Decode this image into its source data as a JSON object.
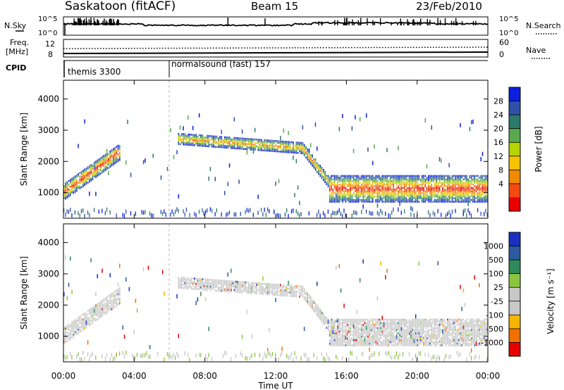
{
  "header": {
    "station": "Saskatoon (fitACF)",
    "beam": "Beam 15",
    "date": "23/Feb/2010"
  },
  "noise_panel": {
    "left_label": "N.Sky",
    "right_label": "N.Search",
    "left_ticks": [
      "10^5",
      "10^0"
    ],
    "right_ticks": [
      "10^5",
      "10^0"
    ]
  },
  "freq_panel": {
    "left_label_1": "Freq.",
    "left_label_2": "[MHz]",
    "left_ticks": [
      "12",
      "8"
    ],
    "right_ticks": [
      "60",
      "0"
    ],
    "right_label": "Nave"
  },
  "cpid_panel": {
    "label": "CPID",
    "segments": [
      {
        "label": "themis 3300",
        "start_hour": 0
      },
      {
        "label": "normalsound (fast) 157",
        "start_hour": 6
      }
    ]
  },
  "power_panel": {
    "ylabel": "Slant Range [km]",
    "yticks": [
      "4000",
      "3000",
      "2000",
      "1000"
    ],
    "colorbar_label": "Power [dB]",
    "colorbar_ticks": [
      "28",
      "24",
      "20",
      "16",
      "12",
      "8",
      "4"
    ],
    "colors": [
      "#0b1fe0",
      "#2f4fa8",
      "#2b7a6a",
      "#5aa84f",
      "#b6d400",
      "#f7c200",
      "#f08a00",
      "#f24a10",
      "#e80000"
    ]
  },
  "velocity_panel": {
    "ylabel": "Slant Range [km]",
    "yticks": [
      "4000",
      "3000",
      "2000",
      "1000"
    ],
    "colorbar_label": "Velocity [m s⁻¹]",
    "colorbar_ticks": [
      "1000",
      "500",
      "100",
      "25",
      "-25",
      "-100",
      "-500",
      "-1000"
    ],
    "colors": [
      "#1a2fbf",
      "#2d5aa0",
      "#2f8a5a",
      "#8cc63f",
      "#c8c8c8",
      "#c8c8c8",
      "#f7b500",
      "#f07000",
      "#e60000"
    ]
  },
  "x_axis": {
    "label": "Time UT",
    "ticks": [
      "00:00",
      "04:00",
      "08:00",
      "12:00",
      "16:00",
      "20:00",
      "00:00"
    ]
  },
  "chart_data": {
    "type": "heatmap",
    "title": "Saskatoon (fitACF) Beam 15 23/Feb/2010",
    "xlabel": "Time UT",
    "xlim_hours": [
      0,
      24
    ],
    "ylabel": "Slant Range [km]",
    "ylim": [
      180,
      4600
    ],
    "panels": [
      {
        "name": "Power [dB]",
        "colorbar_range": [
          0,
          30
        ]
      },
      {
        "name": "Velocity [m s^-1]",
        "colorbar_range": [
          -1000,
          1000
        ]
      }
    ],
    "scatter_bands": [
      {
        "start_hour": 0.0,
        "end_hour": 3.2,
        "range_start_km": 1000,
        "range_end_km": 2300
      },
      {
        "start_hour": 6.4,
        "end_hour": 13.5,
        "range_start_km": 2700,
        "range_end_km": 2400
      },
      {
        "start_hour": 13.5,
        "end_hour": 15.0,
        "range_start_km": 2400,
        "range_end_km": 1300
      },
      {
        "start_hour": 15.0,
        "end_hour": 24.0,
        "range_start_km": 1100,
        "range_end_km": 1100
      }
    ]
  }
}
